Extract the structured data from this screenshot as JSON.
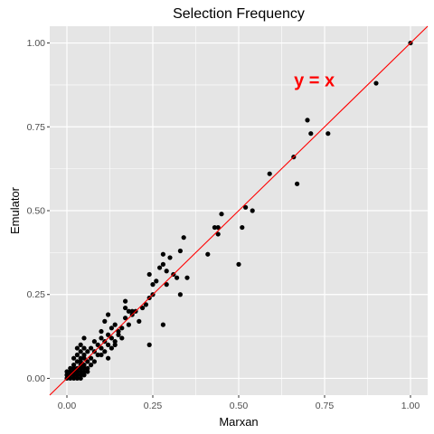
{
  "chart_data": {
    "type": "scatter",
    "title": "Selection Frequency",
    "xlabel": "Marxan",
    "ylabel": "Emulator",
    "xlim": [
      -0.05,
      1.05
    ],
    "ylim": [
      -0.05,
      1.05
    ],
    "x_ticks": [
      0,
      0.25,
      0.5,
      0.75,
      1
    ],
    "x_tick_labels": [
      "0.00",
      "0.25",
      "0.50",
      "0.75",
      "1.00"
    ],
    "y_ticks": [
      0,
      0.25,
      0.5,
      0.75,
      1
    ],
    "y_tick_labels": [
      "0.00",
      "0.25",
      "0.50",
      "0.75",
      "1.00"
    ],
    "grid": true,
    "background_color": "#e5e5e5",
    "grid_color": "#ffffff",
    "point_color": "#000000",
    "line_color": "#ff0000",
    "reference_line": {
      "slope": 1,
      "intercept": 0
    },
    "annotation": {
      "text": "y = x",
      "x": 0.72,
      "y": 0.89,
      "color": "#ff0000"
    },
    "points": [
      [
        0.0,
        0.0
      ],
      [
        0.0,
        0.01
      ],
      [
        0.0,
        0.02
      ],
      [
        0.01,
        0.0
      ],
      [
        0.01,
        0.01
      ],
      [
        0.01,
        0.02
      ],
      [
        0.01,
        0.03
      ],
      [
        0.02,
        0.0
      ],
      [
        0.02,
        0.01
      ],
      [
        0.02,
        0.02
      ],
      [
        0.02,
        0.03
      ],
      [
        0.02,
        0.04
      ],
      [
        0.02,
        0.06
      ],
      [
        0.03,
        0.0
      ],
      [
        0.03,
        0.01
      ],
      [
        0.03,
        0.02
      ],
      [
        0.03,
        0.03
      ],
      [
        0.03,
        0.05
      ],
      [
        0.03,
        0.07
      ],
      [
        0.03,
        0.09
      ],
      [
        0.04,
        0.0
      ],
      [
        0.04,
        0.01
      ],
      [
        0.04,
        0.02
      ],
      [
        0.04,
        0.03
      ],
      [
        0.04,
        0.04
      ],
      [
        0.04,
        0.05
      ],
      [
        0.04,
        0.06
      ],
      [
        0.04,
        0.08
      ],
      [
        0.04,
        0.1
      ],
      [
        0.05,
        0.01
      ],
      [
        0.05,
        0.02
      ],
      [
        0.05,
        0.03
      ],
      [
        0.05,
        0.04
      ],
      [
        0.05,
        0.06
      ],
      [
        0.05,
        0.07
      ],
      [
        0.05,
        0.09
      ],
      [
        0.05,
        0.12
      ],
      [
        0.06,
        0.02
      ],
      [
        0.06,
        0.03
      ],
      [
        0.06,
        0.05
      ],
      [
        0.06,
        0.08
      ],
      [
        0.07,
        0.04
      ],
      [
        0.07,
        0.06
      ],
      [
        0.07,
        0.09
      ],
      [
        0.08,
        0.05
      ],
      [
        0.08,
        0.08
      ],
      [
        0.08,
        0.11
      ],
      [
        0.09,
        0.07
      ],
      [
        0.09,
        0.1
      ],
      [
        0.1,
        0.07
      ],
      [
        0.1,
        0.09
      ],
      [
        0.1,
        0.12
      ],
      [
        0.1,
        0.14
      ],
      [
        0.11,
        0.08
      ],
      [
        0.11,
        0.11
      ],
      [
        0.11,
        0.17
      ],
      [
        0.12,
        0.06
      ],
      [
        0.12,
        0.1
      ],
      [
        0.12,
        0.13
      ],
      [
        0.12,
        0.19
      ],
      [
        0.13,
        0.09
      ],
      [
        0.13,
        0.12
      ],
      [
        0.13,
        0.15
      ],
      [
        0.14,
        0.1
      ],
      [
        0.14,
        0.11
      ],
      [
        0.14,
        0.16
      ],
      [
        0.15,
        0.13
      ],
      [
        0.15,
        0.14
      ],
      [
        0.16,
        0.12
      ],
      [
        0.16,
        0.15
      ],
      [
        0.17,
        0.18
      ],
      [
        0.17,
        0.21
      ],
      [
        0.17,
        0.23
      ],
      [
        0.18,
        0.16
      ],
      [
        0.18,
        0.2
      ],
      [
        0.19,
        0.19
      ],
      [
        0.19,
        0.2
      ],
      [
        0.2,
        0.2
      ],
      [
        0.21,
        0.17
      ],
      [
        0.22,
        0.21
      ],
      [
        0.23,
        0.22
      ],
      [
        0.24,
        0.1
      ],
      [
        0.24,
        0.24
      ],
      [
        0.24,
        0.31
      ],
      [
        0.25,
        0.25
      ],
      [
        0.25,
        0.28
      ],
      [
        0.26,
        0.29
      ],
      [
        0.27,
        0.33
      ],
      [
        0.28,
        0.16
      ],
      [
        0.28,
        0.34
      ],
      [
        0.28,
        0.37
      ],
      [
        0.29,
        0.28
      ],
      [
        0.29,
        0.32
      ],
      [
        0.3,
        0.36
      ],
      [
        0.31,
        0.31
      ],
      [
        0.32,
        0.3
      ],
      [
        0.33,
        0.25
      ],
      [
        0.33,
        0.38
      ],
      [
        0.34,
        0.42
      ],
      [
        0.35,
        0.3
      ],
      [
        0.41,
        0.37
      ],
      [
        0.43,
        0.45
      ],
      [
        0.44,
        0.43
      ],
      [
        0.44,
        0.45
      ],
      [
        0.45,
        0.49
      ],
      [
        0.5,
        0.34
      ],
      [
        0.51,
        0.45
      ],
      [
        0.52,
        0.51
      ],
      [
        0.54,
        0.5
      ],
      [
        0.59,
        0.61
      ],
      [
        0.66,
        0.66
      ],
      [
        0.67,
        0.58
      ],
      [
        0.7,
        0.77
      ],
      [
        0.71,
        0.73
      ],
      [
        0.76,
        0.73
      ],
      [
        0.9,
        0.88
      ],
      [
        1.0,
        1.0
      ]
    ]
  }
}
